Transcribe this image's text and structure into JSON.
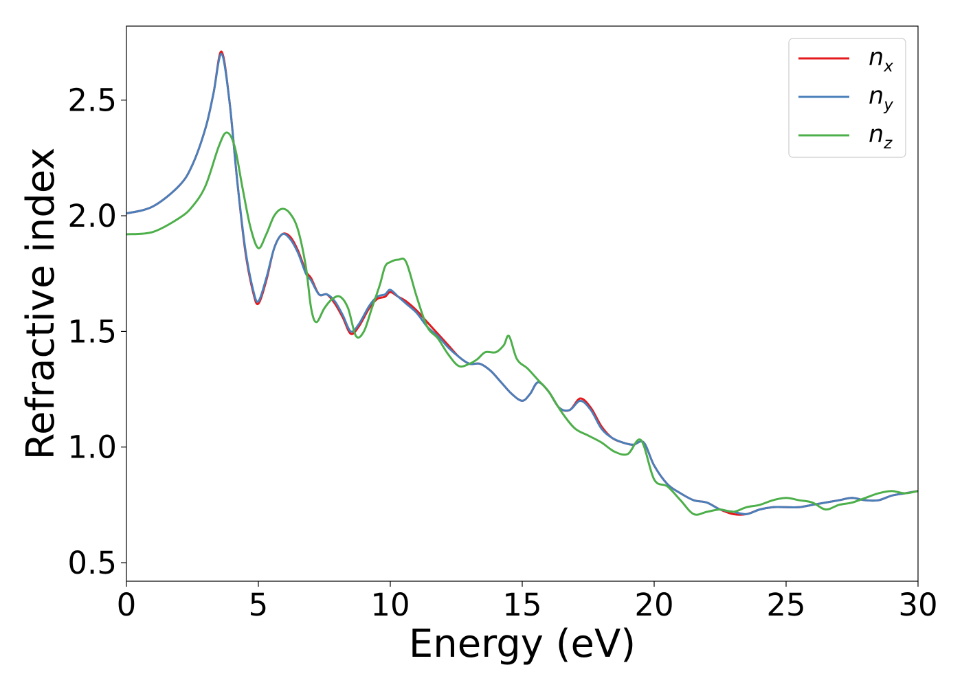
{
  "chart_data": {
    "type": "line",
    "title": "",
    "xlabel": "Energy (eV)",
    "ylabel": "Refractive index",
    "xlim": [
      0,
      30
    ],
    "ylim": [
      0.42,
      2.82
    ],
    "xticks": [
      0,
      5,
      10,
      15,
      20,
      25,
      30
    ],
    "yticks": [
      0.5,
      1.0,
      1.5,
      2.0,
      2.5
    ],
    "xtick_labels": [
      "0",
      "5",
      "10",
      "15",
      "20",
      "25",
      "30"
    ],
    "ytick_labels": [
      "0.5",
      "1.0",
      "1.5",
      "2.0",
      "2.5"
    ],
    "grid": false,
    "legend_position": "top-right",
    "series": [
      {
        "name": "n_x",
        "label_main": "n",
        "label_sub": "x",
        "color": "#e41a1c",
        "x": [
          0,
          1,
          2,
          2.5,
          3,
          3.3,
          3.6,
          3.9,
          4.2,
          4.5,
          4.8,
          5.0,
          5.3,
          5.6,
          5.9,
          6.2,
          6.5,
          6.8,
          7.0,
          7.3,
          7.6,
          7.9,
          8.2,
          8.5,
          8.8,
          9.2,
          9.5,
          9.8,
          10.0,
          10.3,
          10.6,
          11.0,
          11.4,
          11.8,
          12.2,
          12.6,
          13.0,
          13.4,
          13.8,
          14.2,
          14.6,
          15.0,
          15.3,
          15.6,
          16.0,
          16.4,
          16.8,
          17.2,
          17.6,
          18.0,
          18.4,
          18.8,
          19.2,
          19.6,
          20.0,
          20.5,
          21.0,
          21.5,
          22.0,
          22.5,
          23.0,
          23.5,
          24.0,
          24.5,
          25.0,
          25.5,
          26.0,
          26.5,
          27.0,
          27.5,
          28.0,
          28.5,
          29.0,
          29.5,
          30.0
        ],
        "y": [
          2.01,
          2.04,
          2.13,
          2.22,
          2.38,
          2.53,
          2.71,
          2.5,
          2.15,
          1.85,
          1.67,
          1.62,
          1.72,
          1.86,
          1.92,
          1.91,
          1.85,
          1.76,
          1.73,
          1.66,
          1.66,
          1.62,
          1.56,
          1.49,
          1.52,
          1.6,
          1.64,
          1.65,
          1.67,
          1.65,
          1.63,
          1.59,
          1.54,
          1.49,
          1.44,
          1.39,
          1.36,
          1.36,
          1.33,
          1.28,
          1.23,
          1.2,
          1.23,
          1.28,
          1.24,
          1.17,
          1.16,
          1.21,
          1.17,
          1.09,
          1.04,
          1.02,
          1.01,
          1.02,
          0.92,
          0.84,
          0.8,
          0.77,
          0.76,
          0.73,
          0.71,
          0.71,
          0.73,
          0.74,
          0.74,
          0.74,
          0.75,
          0.76,
          0.77,
          0.78,
          0.77,
          0.77,
          0.79,
          0.8,
          0.81
        ]
      },
      {
        "name": "n_y",
        "label_main": "n",
        "label_sub": "y",
        "color": "#4a7fba",
        "x": [
          0,
          1,
          2,
          2.5,
          3,
          3.3,
          3.6,
          3.9,
          4.2,
          4.5,
          4.8,
          5.0,
          5.3,
          5.6,
          5.9,
          6.2,
          6.5,
          6.8,
          7.0,
          7.3,
          7.6,
          7.9,
          8.2,
          8.5,
          8.8,
          9.2,
          9.5,
          9.8,
          10.0,
          10.3,
          10.6,
          11.0,
          11.4,
          11.8,
          12.2,
          12.6,
          13.0,
          13.4,
          13.8,
          14.2,
          14.6,
          15.0,
          15.3,
          15.6,
          16.0,
          16.4,
          16.8,
          17.2,
          17.6,
          18.0,
          18.4,
          18.8,
          19.2,
          19.6,
          20.0,
          20.5,
          21.0,
          21.5,
          22.0,
          22.5,
          23.0,
          23.5,
          24.0,
          24.5,
          25.0,
          25.5,
          26.0,
          26.5,
          27.0,
          27.5,
          28.0,
          28.5,
          29.0,
          29.5,
          30.0
        ],
        "y": [
          2.01,
          2.04,
          2.13,
          2.22,
          2.38,
          2.53,
          2.7,
          2.5,
          2.15,
          1.86,
          1.68,
          1.63,
          1.73,
          1.86,
          1.92,
          1.9,
          1.84,
          1.75,
          1.72,
          1.66,
          1.66,
          1.63,
          1.57,
          1.5,
          1.53,
          1.61,
          1.65,
          1.66,
          1.68,
          1.65,
          1.62,
          1.58,
          1.52,
          1.48,
          1.43,
          1.39,
          1.36,
          1.36,
          1.33,
          1.28,
          1.23,
          1.2,
          1.23,
          1.28,
          1.24,
          1.17,
          1.16,
          1.2,
          1.16,
          1.08,
          1.04,
          1.02,
          1.01,
          1.02,
          0.92,
          0.84,
          0.8,
          0.77,
          0.76,
          0.73,
          0.72,
          0.71,
          0.73,
          0.74,
          0.74,
          0.74,
          0.75,
          0.76,
          0.77,
          0.78,
          0.77,
          0.77,
          0.79,
          0.8,
          0.81
        ]
      },
      {
        "name": "n_z",
        "label_main": "n",
        "label_sub": "z",
        "color": "#4daf4a",
        "x": [
          0,
          1,
          2,
          2.5,
          3,
          3.5,
          3.8,
          4.1,
          4.4,
          4.7,
          5.0,
          5.3,
          5.6,
          5.9,
          6.2,
          6.5,
          6.8,
          7.0,
          7.2,
          7.5,
          7.8,
          8.1,
          8.4,
          8.7,
          9.0,
          9.3,
          9.6,
          9.8,
          10.0,
          10.3,
          10.6,
          11.0,
          11.4,
          11.8,
          12.2,
          12.6,
          13.0,
          13.3,
          13.6,
          14.0,
          14.3,
          14.5,
          14.8,
          15.2,
          15.6,
          16.0,
          16.5,
          17.0,
          17.5,
          18.0,
          18.5,
          19.0,
          19.5,
          20.0,
          20.5,
          21.0,
          21.5,
          22.0,
          22.5,
          23.0,
          23.5,
          24.0,
          24.5,
          25.0,
          25.5,
          26.0,
          26.5,
          27.0,
          27.5,
          28.0,
          28.5,
          29.0,
          29.5,
          30.0
        ],
        "y": [
          1.92,
          1.93,
          1.99,
          2.04,
          2.13,
          2.3,
          2.36,
          2.3,
          2.12,
          1.95,
          1.86,
          1.92,
          2.0,
          2.03,
          2.01,
          1.94,
          1.78,
          1.6,
          1.54,
          1.6,
          1.64,
          1.65,
          1.6,
          1.48,
          1.5,
          1.6,
          1.7,
          1.78,
          1.8,
          1.81,
          1.8,
          1.65,
          1.52,
          1.47,
          1.4,
          1.35,
          1.36,
          1.38,
          1.41,
          1.41,
          1.44,
          1.48,
          1.38,
          1.34,
          1.29,
          1.24,
          1.15,
          1.08,
          1.05,
          1.02,
          0.98,
          0.97,
          1.03,
          0.86,
          0.83,
          0.77,
          0.71,
          0.72,
          0.73,
          0.72,
          0.74,
          0.75,
          0.77,
          0.78,
          0.77,
          0.76,
          0.73,
          0.75,
          0.76,
          0.78,
          0.8,
          0.81,
          0.8,
          0.81
        ]
      }
    ]
  }
}
